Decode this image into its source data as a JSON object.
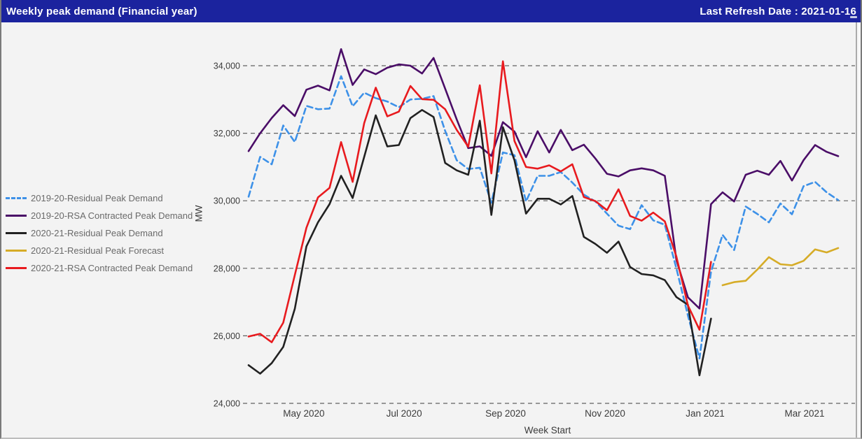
{
  "header": {
    "title": "Weekly peak demand (Financial year)",
    "last_refresh": "Last Refresh Date : 2021-01-16"
  },
  "legend": {
    "position": "left",
    "items": [
      {
        "id": "fy1920-residual",
        "label": "2019-20-Residual Peak Demand",
        "color": "#3D91E8",
        "style": "dashed"
      },
      {
        "id": "fy1920-rsa",
        "label": "2019-20-RSA Contracted Peak Demand",
        "color": "#4A0D67",
        "style": "solid"
      },
      {
        "id": "fy2021-residual",
        "label": "2020-21-Residual Peak Demand",
        "color": "#212121",
        "style": "solid"
      },
      {
        "id": "fy2021-forecast",
        "label": "2020-21-Residual Peak Forecast",
        "color": "#D6AC27",
        "style": "solid"
      },
      {
        "id": "fy2021-rsa",
        "label": "2020-21-RSA Contracted Peak Demand",
        "color": "#E81A1E",
        "style": "solid"
      }
    ]
  },
  "chart_data": {
    "type": "line",
    "title": "Weekly peak demand (Financial year)",
    "xlabel": "Week Start",
    "ylabel": "MW",
    "ylim": [
      24000,
      34000
    ],
    "y_ticks": [
      24000,
      26000,
      28000,
      30000,
      32000,
      34000
    ],
    "grid": "dashed-horizontal",
    "legend_position": "left",
    "x_ticks": [
      {
        "label": "May 2020",
        "pos": 4.78
      },
      {
        "label": "Jul 2020",
        "pos": 13.45
      },
      {
        "label": "Sep 2020",
        "pos": 22.23
      },
      {
        "label": "Nov 2020",
        "pos": 30.83
      },
      {
        "label": "Jan 2021",
        "pos": 39.49
      },
      {
        "label": "Mar 2021",
        "pos": 48.09
      }
    ],
    "weeks": [
      "2020-03-30",
      "2020-04-06",
      "2020-04-13",
      "2020-04-20",
      "2020-04-27",
      "2020-05-04",
      "2020-05-11",
      "2020-05-18",
      "2020-05-25",
      "2020-06-01",
      "2020-06-08",
      "2020-06-15",
      "2020-06-22",
      "2020-06-29",
      "2020-07-06",
      "2020-07-13",
      "2020-07-20",
      "2020-07-27",
      "2020-08-03",
      "2020-08-10",
      "2020-08-17",
      "2020-08-24",
      "2020-08-31",
      "2020-09-07",
      "2020-09-14",
      "2020-09-21",
      "2020-09-28",
      "2020-10-05",
      "2020-10-12",
      "2020-10-19",
      "2020-10-26",
      "2020-11-02",
      "2020-11-09",
      "2020-11-16",
      "2020-11-23",
      "2020-11-30",
      "2020-12-07",
      "2020-12-14",
      "2020-12-21",
      "2020-12-28",
      "2021-01-04",
      "2021-01-11",
      "2021-01-18",
      "2021-01-25",
      "2021-02-01",
      "2021-02-08",
      "2021-02-15",
      "2021-02-22",
      "2021-03-01",
      "2021-03-08",
      "2021-03-15",
      "2021-03-22"
    ],
    "series": [
      {
        "name": "2019-20-Residual Peak Demand",
        "color": "#3D91E8",
        "dash": [
          8,
          5
        ],
        "values": [
          30120,
          31300,
          31080,
          32230,
          31740,
          32810,
          32710,
          32730,
          33690,
          32800,
          33200,
          33040,
          32940,
          32770,
          33000,
          33020,
          33100,
          32070,
          31200,
          30940,
          30980,
          29940,
          31430,
          31350,
          29980,
          30740,
          30740,
          30850,
          30540,
          30180,
          29980,
          29620,
          29260,
          29160,
          29870,
          29420,
          29290,
          28000,
          26600,
          25330,
          27900,
          28990,
          28540,
          29830,
          29610,
          29360,
          29920,
          29600,
          30430,
          30560,
          30250,
          30020
        ]
      },
      {
        "name": "2019-20-RSA Contracted Peak Demand",
        "color": "#4A0D67",
        "dash": null,
        "values": [
          31470,
          32000,
          32450,
          32830,
          32510,
          33290,
          33410,
          33270,
          34490,
          33430,
          33890,
          33750,
          33940,
          34040,
          34000,
          33770,
          34230,
          33320,
          32410,
          31560,
          31610,
          31330,
          32330,
          32050,
          31290,
          32060,
          31430,
          32100,
          31500,
          31660,
          31250,
          30800,
          30720,
          30900,
          30960,
          30900,
          30740,
          28250,
          27140,
          26810,
          29900,
          30250,
          29980,
          30770,
          30890,
          30770,
          31180,
          30600,
          31200,
          31650,
          31450,
          31320
        ]
      },
      {
        "name": "2020-21-Residual Peak Demand",
        "color": "#212121",
        "dash": null,
        "values": [
          25130,
          24880,
          25190,
          25670,
          26800,
          28650,
          29360,
          29900,
          30740,
          30080,
          31300,
          32530,
          31610,
          31650,
          32450,
          32690,
          32480,
          31120,
          30900,
          30770,
          32370,
          29580,
          32180,
          31200,
          29620,
          30060,
          30060,
          29890,
          30140,
          28930,
          28720,
          28460,
          28790,
          28040,
          27830,
          27790,
          27650,
          27150,
          26920,
          24830,
          26510,
          null,
          null,
          null,
          null,
          null,
          null,
          null,
          null,
          null,
          null,
          null
        ]
      },
      {
        "name": "2020-21-Residual Peak Forecast",
        "color": "#D6AC27",
        "dash": null,
        "values": [
          null,
          null,
          null,
          null,
          null,
          null,
          null,
          null,
          null,
          null,
          null,
          null,
          null,
          null,
          null,
          null,
          null,
          null,
          null,
          null,
          null,
          null,
          null,
          null,
          null,
          null,
          null,
          null,
          null,
          null,
          null,
          null,
          null,
          null,
          null,
          null,
          null,
          null,
          null,
          null,
          null,
          27500,
          27590,
          27630,
          27960,
          28330,
          28120,
          28090,
          28220,
          28560,
          28470,
          28600
        ]
      },
      {
        "name": "2020-21-RSA Contracted Peak Demand",
        "color": "#E81A1E",
        "dash": null,
        "values": [
          25980,
          26060,
          25810,
          26390,
          27800,
          29200,
          30100,
          30380,
          31740,
          30560,
          32300,
          33350,
          32500,
          32640,
          33400,
          33010,
          32990,
          32710,
          32100,
          31600,
          33420,
          30810,
          34130,
          31770,
          31000,
          30950,
          31050,
          30870,
          31080,
          30110,
          29990,
          29720,
          30340,
          29550,
          29410,
          29650,
          29390,
          28350,
          26900,
          26180,
          28190,
          null,
          null,
          null,
          null,
          null,
          null,
          null,
          null,
          null,
          null,
          null
        ]
      }
    ]
  },
  "colors": {
    "header_bg": "#1B239E",
    "header_text": "#FFFFFF",
    "page_bg": "#F3F3F3",
    "grid_line": "#606060",
    "tick_text": "#3B3B3B",
    "legend_text": "#6A6A6A",
    "border_side": "#7A7A7A",
    "border_bottom": "#BDBDBD"
  }
}
